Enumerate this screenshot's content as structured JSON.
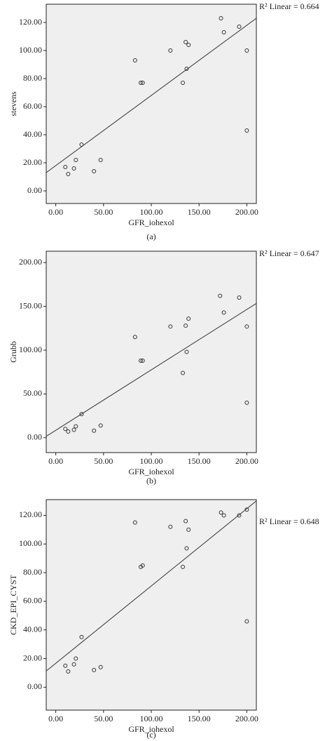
{
  "chart_data": [
    {
      "type": "scatter",
      "x_label": "GFR_iohexol",
      "y_label": "stevens",
      "caption": "(a)",
      "annotation": "R² Linear = 0.664",
      "x": [
        10,
        13,
        19,
        21,
        27,
        40,
        47,
        83,
        89,
        91,
        120,
        133,
        136,
        137,
        139,
        173,
        176,
        192,
        200,
        200
      ],
      "series": [
        {
          "name": "stevens",
          "color": "#333333",
          "values": [
            17,
            12,
            16,
            22,
            33,
            14,
            22,
            93,
            77,
            77,
            100,
            77,
            106,
            87,
            104,
            123,
            113,
            117,
            100,
            43
          ]
        }
      ],
      "fit": {
        "intercept": 18,
        "slope": 0.5
      },
      "xlim": [
        -10,
        210
      ],
      "ylim": [
        -9,
        133
      ],
      "xticks": [
        {
          "value": 0,
          "label": "0.00"
        },
        {
          "value": 50,
          "label": "50.00"
        },
        {
          "value": 100,
          "label": "100.00"
        },
        {
          "value": 150,
          "label": "150.00"
        },
        {
          "value": 200,
          "label": "200.00"
        }
      ],
      "yticks": [
        {
          "value": 0,
          "label": "0.00"
        },
        {
          "value": 20,
          "label": "20.00"
        },
        {
          "value": 40,
          "label": "40.00"
        },
        {
          "value": 60,
          "label": "60.00"
        },
        {
          "value": 80,
          "label": "80.00"
        },
        {
          "value": 100,
          "label": "100.00"
        },
        {
          "value": 120,
          "label": "120.00"
        }
      ]
    },
    {
      "type": "scatter",
      "x_label": "GFR_iohexol",
      "y_label": "Grubb",
      "caption": "(b)",
      "annotation": "R² Linear = 0.647",
      "x": [
        10,
        13,
        19,
        21,
        27,
        40,
        47,
        83,
        89,
        91,
        120,
        133,
        136,
        137,
        139,
        172,
        176,
        192,
        200,
        200
      ],
      "series": [
        {
          "name": "Grubb",
          "color": "#333333",
          "values": [
            10,
            7,
            9,
            13,
            27,
            8,
            14,
            115,
            88,
            88,
            127,
            74,
            128,
            98,
            136,
            162,
            143,
            160,
            127,
            40
          ]
        }
      ],
      "fit": {
        "intercept": 8.5,
        "slope": 0.69
      },
      "xlim": [
        -10,
        210
      ],
      "ylim": [
        -17,
        213
      ],
      "xticks": [
        {
          "value": 0,
          "label": "0.00"
        },
        {
          "value": 50,
          "label": "50.00"
        },
        {
          "value": 100,
          "label": "100.00"
        },
        {
          "value": 150,
          "label": "150.00"
        },
        {
          "value": 200,
          "label": "200.00"
        }
      ],
      "yticks": [
        {
          "value": 0,
          "label": "0.00"
        },
        {
          "value": 50,
          "label": "50.00"
        },
        {
          "value": 100,
          "label": "100.00"
        },
        {
          "value": 150,
          "label": "150.00"
        },
        {
          "value": 200,
          "label": "200.00"
        }
      ]
    },
    {
      "type": "scatter",
      "x_label": "GFR_iohexol",
      "y_label": "CKD_EPI_CYST",
      "caption": "(c)",
      "annotation": "R² Linear = 0.648",
      "x": [
        10,
        13,
        19,
        21,
        27,
        40,
        47,
        83,
        89,
        91,
        120,
        133,
        136,
        137,
        139,
        173,
        176,
        192,
        200,
        200
      ],
      "series": [
        {
          "name": "CKD_EPI_CYST",
          "color": "#333333",
          "values": [
            15,
            11,
            16,
            20,
            35,
            12,
            14,
            115,
            84,
            85,
            112,
            84,
            116,
            97,
            110,
            122,
            120,
            120,
            124,
            46
          ]
        }
      ],
      "fit": {
        "intercept": 16.7,
        "slope": 0.54
      },
      "xlim": [
        -10,
        210
      ],
      "ylim": [
        -16,
        131
      ],
      "xticks": [
        {
          "value": 0,
          "label": "0.00"
        },
        {
          "value": 50,
          "label": "50.00"
        },
        {
          "value": 100,
          "label": "100.00"
        },
        {
          "value": 150,
          "label": "150.00"
        },
        {
          "value": 200,
          "label": "200.00"
        }
      ],
      "yticks": [
        {
          "value": 0,
          "label": "0.00"
        },
        {
          "value": 20,
          "label": "20.00"
        },
        {
          "value": 40,
          "label": "40.00"
        },
        {
          "value": 60,
          "label": "60.00"
        },
        {
          "value": 80,
          "label": "80.00"
        },
        {
          "value": 100,
          "label": "100.00"
        },
        {
          "value": 120,
          "label": "120.00"
        }
      ]
    }
  ]
}
